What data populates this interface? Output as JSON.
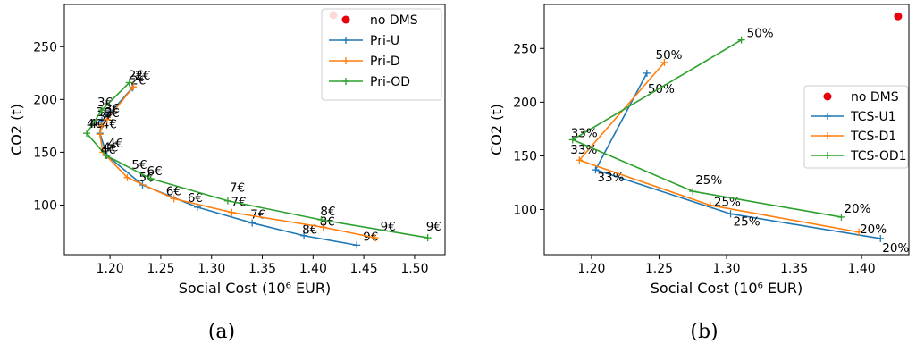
{
  "figure": {
    "captions": [
      "(a)",
      "(b)"
    ]
  },
  "chart_data": [
    {
      "type": "line",
      "xlabel": "Social Cost (10⁶ EUR)",
      "ylabel": "CO2 (t)",
      "xlim": [
        1.155,
        1.53
      ],
      "ylim": [
        53,
        290
      ],
      "xticks": [
        "1.20",
        "1.25",
        "1.30",
        "1.35",
        "1.40",
        "1.45",
        "1.50"
      ],
      "yticks": [
        "100",
        "150",
        "200",
        "250"
      ],
      "legend": "top-right",
      "grid": false,
      "reference_point": {
        "name": "no DMS",
        "x": 1.42,
        "y": 280,
        "color": "#e8000b"
      },
      "series": [
        {
          "name": "Pri-U",
          "color": "#1f77b4",
          "x": [
            1.443,
            1.391,
            1.34,
            1.286,
            1.232,
            1.197,
            1.19,
            1.192,
            1.199,
            1.222
          ],
          "y": [
            62,
            71,
            83,
            98,
            119,
            147,
            168,
            180,
            186,
            211
          ],
          "labels": [
            "9€",
            "8€",
            "7€",
            "6€",
            "5€",
            "4€",
            "4€",
            "3€",
            "3€",
            "2€"
          ]
        },
        {
          "name": "Pri-D",
          "color": "#ff7f0e",
          "x": [
            1.461,
            1.41,
            1.32,
            1.263,
            1.217,
            1.193,
            1.19,
            1.192,
            1.197,
            1.223
          ],
          "y": [
            69,
            79,
            93,
            106,
            126,
            150,
            167,
            175,
            181,
            212
          ],
          "labels": [
            "9€",
            "8€",
            "7€",
            "6€",
            "5€",
            "4€",
            "4€",
            "3€",
            "3€",
            "2€"
          ]
        },
        {
          "name": "Pri-OD",
          "color": "#2ca02c",
          "x": [
            1.513,
            1.408,
            1.316,
            1.24,
            1.196,
            1.177,
            1.192,
            1.219
          ],
          "y": [
            69,
            86,
            104,
            125,
            147,
            168,
            190,
            216
          ],
          "labels": [
            "9€",
            "8€",
            "7€",
            "6€",
            "4€",
            "4€",
            "3€",
            "2€"
          ]
        }
      ]
    },
    {
      "type": "line",
      "xlabel": "Social Cost (10⁶ EUR)",
      "ylabel": "CO2 (t)",
      "xlim": [
        1.165,
        1.435
      ],
      "ylim": [
        58,
        291
      ],
      "xticks": [
        "1.20",
        "1.25",
        "1.30",
        "1.35",
        "1.40"
      ],
      "yticks": [
        "100",
        "150",
        "200",
        "250"
      ],
      "legend": "center-right",
      "grid": false,
      "reference_point": {
        "name": "no DMS",
        "x": 1.427,
        "y": 280,
        "color": "#e8000b"
      },
      "series": [
        {
          "name": "TCS-U1",
          "color": "#1f77b4",
          "x": [
            1.414,
            1.303,
            1.203,
            1.241
          ],
          "y": [
            73,
            96,
            137,
            227
          ],
          "labels": [
            "20%",
            "25%",
            "33%",
            "50%"
          ]
        },
        {
          "name": "TCS-D1",
          "color": "#ff7f0e",
          "x": [
            1.398,
            1.288,
            1.191,
            1.254
          ],
          "y": [
            79,
            104,
            146,
            237
          ],
          "labels": [
            "20%",
            "25%",
            "33%",
            "50%"
          ]
        },
        {
          "name": "TCS-OD1",
          "color": "#2ca02c",
          "x": [
            1.385,
            1.275,
            1.186,
            1.311
          ],
          "y": [
            93,
            117,
            165,
            258
          ],
          "labels": [
            "20%",
            "25%",
            "33%",
            "50%"
          ]
        }
      ]
    }
  ]
}
